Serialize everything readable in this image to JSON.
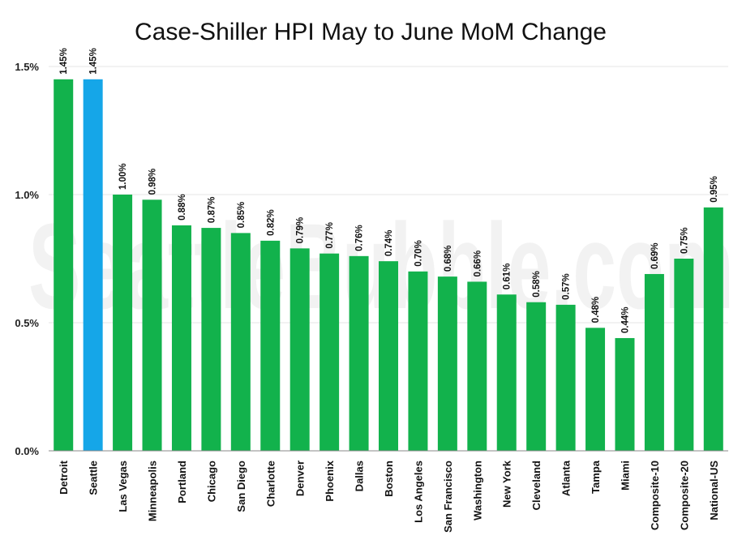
{
  "chart_data": {
    "type": "bar",
    "title": "Case-Shiller HPI May to June MoM Change",
    "xlabel": "",
    "ylabel": "",
    "ylim": [
      0,
      1.5
    ],
    "yticks": [
      0.0,
      0.5,
      1.0,
      1.5
    ],
    "ytick_labels": [
      "0.0%",
      "0.5%",
      "1.0%",
      "1.5%"
    ],
    "categories": [
      "Detroit",
      "Seattle",
      "Las Vegas",
      "Minneapolis",
      "Portland",
      "Chicago",
      "San Diego",
      "Charlotte",
      "Denver",
      "Phoenix",
      "Dallas",
      "Boston",
      "Los Angeles",
      "San Francisco",
      "Washington",
      "New York",
      "Cleveland",
      "Atlanta",
      "Tampa",
      "Miami",
      "Composite-10",
      "Composite-20",
      "National-US"
    ],
    "values": [
      1.45,
      1.45,
      1.0,
      0.98,
      0.88,
      0.87,
      0.85,
      0.82,
      0.79,
      0.77,
      0.76,
      0.74,
      0.7,
      0.68,
      0.66,
      0.61,
      0.58,
      0.57,
      0.48,
      0.44,
      0.69,
      0.75,
      0.95
    ],
    "data_labels": [
      "1.45%",
      "1.45%",
      "1.00%",
      "0.98%",
      "0.88%",
      "0.87%",
      "0.85%",
      "0.82%",
      "0.79%",
      "0.77%",
      "0.76%",
      "0.74%",
      "0.70%",
      "0.68%",
      "0.66%",
      "0.61%",
      "0.58%",
      "0.57%",
      "0.48%",
      "0.44%",
      "0.69%",
      "0.75%",
      "0.95%"
    ],
    "highlight_category": "Seattle",
    "colors": {
      "bar": "#12b24c",
      "highlight": "#15a6e8"
    },
    "grid": true,
    "legend": "none",
    "watermark": "SeattleBubble.com"
  }
}
